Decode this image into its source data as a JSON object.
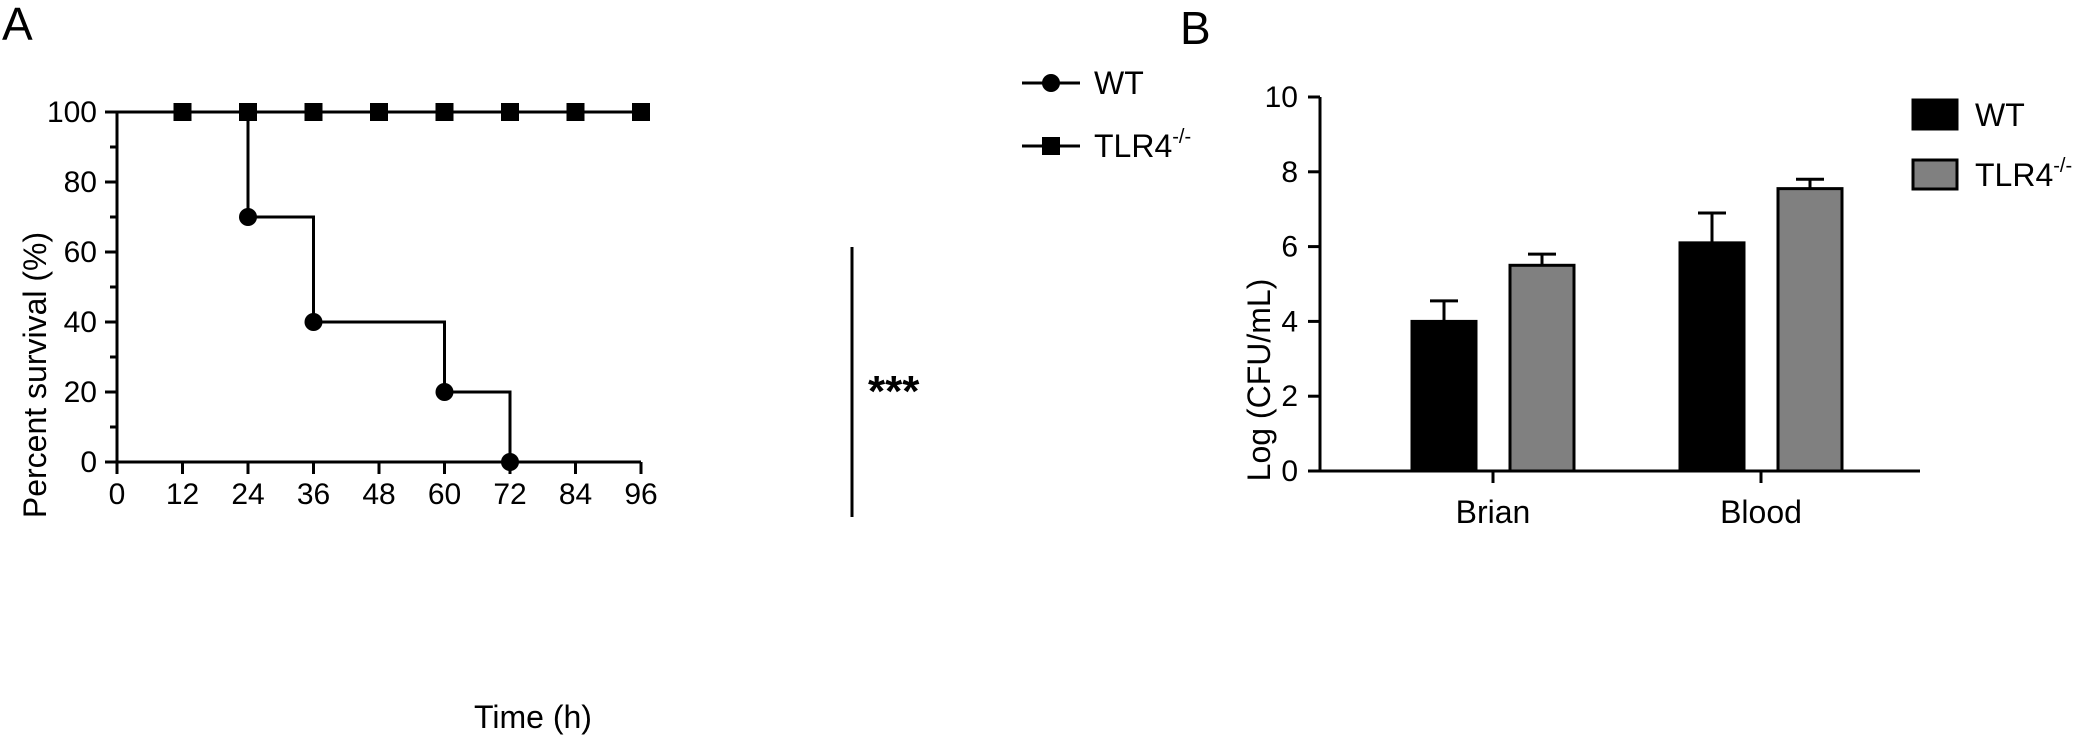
{
  "panels": {
    "a_label": "A",
    "b_label": "B"
  },
  "chart_data": [
    {
      "type": "line",
      "subtype": "survival-step",
      "xlabel": "Time (h)",
      "ylabel": "Percent survival (%)",
      "xlim": [
        0,
        96
      ],
      "ylim": [
        0,
        100
      ],
      "x_ticks": [
        "0",
        "12",
        "24",
        "36",
        "48",
        "60",
        "72",
        "84",
        "96"
      ],
      "y_ticks": [
        "0",
        "20",
        "40",
        "60",
        "80",
        "100"
      ],
      "legend_position": "top-right",
      "significance_label": "***",
      "series": [
        {
          "name": "WT",
          "marker": "circle",
          "color": "#000000",
          "x": [
            0,
            24,
            36,
            60,
            72
          ],
          "y": [
            100,
            70,
            40,
            20,
            0
          ]
        },
        {
          "name_base": "TLR4",
          "name_sup": "-/-",
          "marker": "square",
          "color": "#000000",
          "x": [
            0,
            12,
            24,
            36,
            48,
            60,
            72,
            84,
            96
          ],
          "y": [
            100,
            100,
            100,
            100,
            100,
            100,
            100,
            100,
            100
          ]
        }
      ]
    },
    {
      "type": "bar",
      "xlabel": "",
      "ylabel": "Log (CFU/mL)",
      "ylim": [
        0,
        10
      ],
      "y_ticks": [
        "0",
        "2",
        "4",
        "6",
        "8",
        "10"
      ],
      "categories": [
        "Brian",
        "Blood"
      ],
      "legend_position": "top-right",
      "series": [
        {
          "name": "WT",
          "color": "#000000",
          "values": [
            4.0,
            6.1
          ],
          "errors": [
            0.55,
            0.8
          ]
        },
        {
          "name_base": "TLR4",
          "name_sup": "-/-",
          "color": "#808080",
          "values": [
            5.5,
            7.55
          ],
          "errors": [
            0.3,
            0.25
          ]
        }
      ]
    }
  ]
}
